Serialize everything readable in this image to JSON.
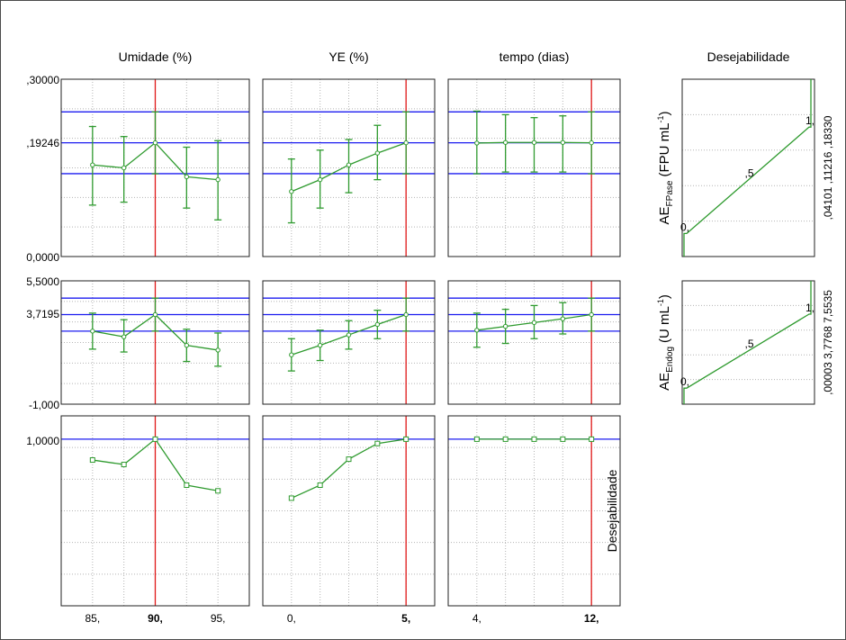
{
  "chart_data": {
    "type": "line",
    "description_free": true,
    "columns": [
      {
        "title": "Umidade (%)",
        "x": [
          85,
          87.5,
          90,
          92.5,
          95
        ],
        "ticks": [
          {
            "label": "85,",
            "x": 85,
            "bold": false
          },
          {
            "label": "90,",
            "x": 90,
            "bold": true
          },
          {
            "label": "95,",
            "x": 95,
            "bold": false
          }
        ],
        "current": 90,
        "xlim": [
          82.5,
          97.5
        ]
      },
      {
        "title": "YE (%)",
        "x": [
          0,
          1.25,
          2.5,
          3.75,
          5
        ],
        "ticks": [
          {
            "label": "0,",
            "x": 0,
            "bold": false
          },
          {
            "label": "5,",
            "x": 5,
            "bold": true
          }
        ],
        "current": 5,
        "xlim": [
          -1.25,
          6.25
        ]
      },
      {
        "title": "tempo (dias)",
        "x": [
          4,
          6,
          8,
          10,
          12
        ],
        "ticks": [
          {
            "label": "4,",
            "x": 4,
            "bold": false
          },
          {
            "label": "12,",
            "x": 12,
            "bold": true
          }
        ],
        "current": 12,
        "xlim": [
          2,
          14
        ]
      }
    ],
    "desirability_title": "Desejabilidade",
    "rows": [
      {
        "tick_labels": [
          ",30000",
          ",19246",
          "0,0000"
        ],
        "ylim": [
          0,
          0.3
        ],
        "hlines": [
          0.2447,
          0.19246,
          0.1402
        ],
        "series": [
          {
            "y": [
              0.155,
              0.15,
              0.19246,
              0.135,
              0.13
            ],
            "lo": [
              0.087,
              0.092,
              0.14,
              0.082,
              0.062
            ],
            "hi": [
              0.22,
              0.203,
              0.2447,
              0.185,
              0.196
            ]
          },
          {
            "y": [
              0.11,
              0.13,
              0.155,
              0.175,
              0.19246
            ],
            "lo": [
              0.057,
              0.082,
              0.108,
              0.13,
              0.14
            ],
            "hi": [
              0.165,
              0.18,
              0.198,
              0.222,
              0.2447
            ]
          },
          {
            "y": [
              0.192,
              0.193,
              0.193,
              0.193,
              0.19246
            ],
            "lo": [
              0.14,
              0.143,
              0.143,
              0.143,
              0.14
            ],
            "hi": [
              0.246,
              0.24,
              0.235,
              0.238,
              0.2447
            ]
          }
        ],
        "desirability": {
          "label_main": "AE",
          "label_sub": "FPase",
          "label_unit": "(FPU mL",
          "label_sup": "-1",
          "label_close": ")",
          "value_labels": [
            ",04101",
            ",11216",
            ",18330"
          ],
          "curve_labels": [
            "0,",
            ",5",
            "1,"
          ]
        }
      },
      {
        "tick_labels": [
          "5,5000",
          "3,7195",
          "-1,000"
        ],
        "ylim": [
          -1,
          5.5
        ],
        "hlines": [
          4.59,
          3.7195,
          2.85
        ],
        "series": [
          {
            "y": [
              2.85,
              2.55,
              3.7195,
              2.1,
              1.85
            ],
            "lo": [
              1.9,
              1.75,
              2.85,
              1.25,
              1.0
            ],
            "hi": [
              3.8,
              3.45,
              4.59,
              2.95,
              2.75
            ]
          },
          {
            "y": [
              1.6,
              2.1,
              2.65,
              3.2,
              3.7195
            ],
            "lo": [
              0.75,
              1.3,
              1.9,
              2.45,
              2.85
            ],
            "hi": [
              2.45,
              2.9,
              3.4,
              3.95,
              4.59
            ]
          },
          {
            "y": [
              2.9,
              3.1,
              3.3,
              3.5,
              3.7195
            ],
            "lo": [
              2.0,
              2.2,
              2.45,
              2.7,
              2.85
            ],
            "hi": [
              3.8,
              4.0,
              4.2,
              4.35,
              4.59
            ]
          }
        ],
        "desirability": {
          "label_main": "AE",
          "label_sub": "Endog",
          "label_unit": "(U mL",
          "label_sup": "-1",
          "label_close": ")",
          "value_labels": [
            ",00003",
            "3,7768",
            "7,5535"
          ],
          "curve_labels": [
            "0,",
            ",5",
            "1,"
          ]
        }
      },
      {
        "tick_labels": [
          "1,0000"
        ],
        "ylim": [
          0,
          1.14
        ],
        "hlines": [
          1.0
        ],
        "series": [
          {
            "y": [
              0.875,
              0.848,
              1.0,
              0.724,
              0.69
            ]
          },
          {
            "y": [
              0.646,
              0.724,
              0.88,
              0.974,
              1.0
            ]
          },
          {
            "y": [
              1.0,
              1.0,
              1.0,
              1.0,
              1.0
            ]
          }
        ],
        "side_label": "Desejabilidade"
      }
    ],
    "colors": {
      "series": "#2e9a2e",
      "hline": "#1c1cf0",
      "current": "#e01818",
      "grid": "#b4b4b4",
      "text": "#000000"
    },
    "grid": true
  }
}
